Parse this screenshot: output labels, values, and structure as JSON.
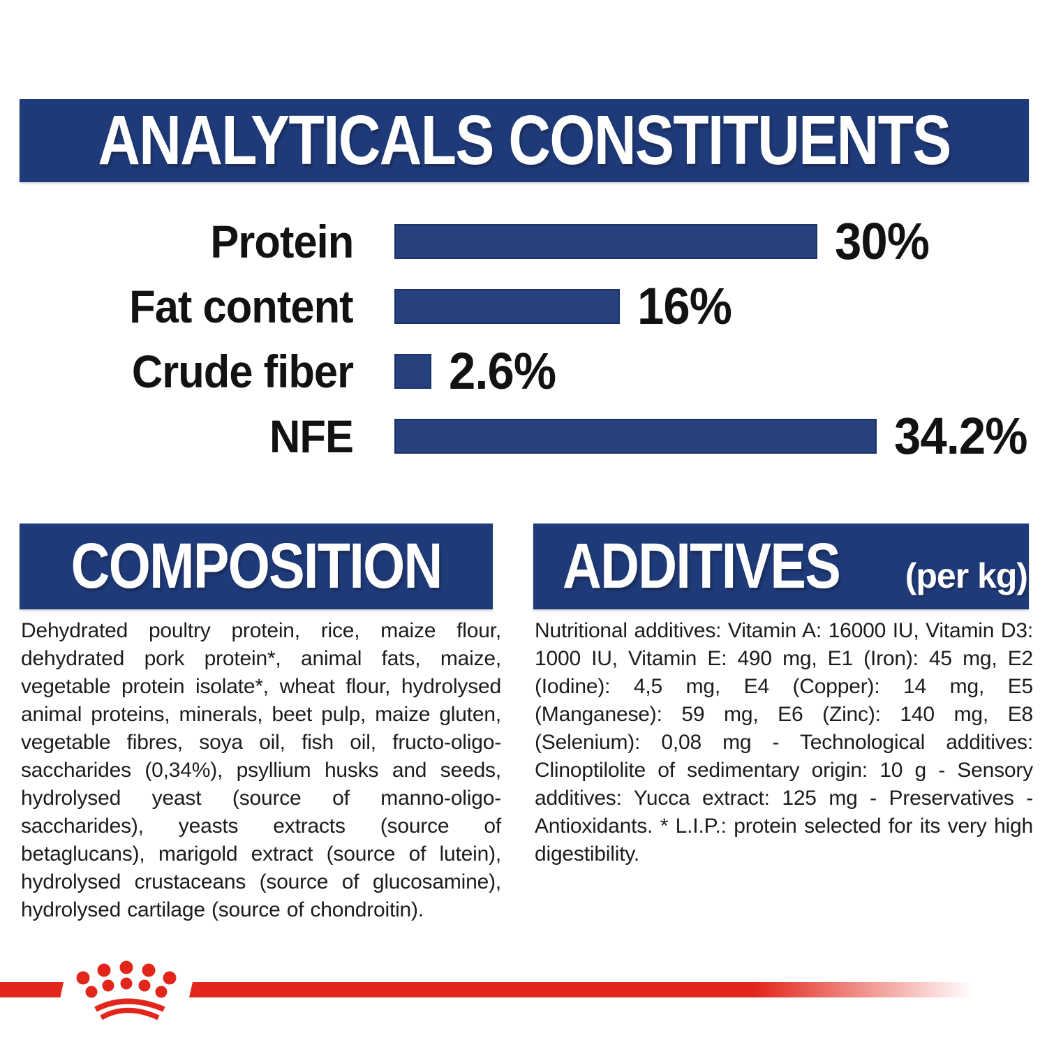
{
  "colors": {
    "banner_blue": "#1e3a79",
    "bar_blue": "#27417e",
    "brand_red": "#e2261b",
    "text_black": "#1c1c1a"
  },
  "analyticals": {
    "title": "ANALYTICALS CONSTITUENTS"
  },
  "chart_data": {
    "type": "bar",
    "orientation": "horizontal",
    "title": "ANALYTICALS CONSTITUENTS",
    "categories": [
      "Protein",
      "Fat content",
      "Crude fiber",
      "NFE"
    ],
    "values": [
      30,
      16,
      2.6,
      34.2
    ],
    "value_labels": [
      "30%",
      "16%",
      "2.6%",
      "34.2%"
    ],
    "unit": "%",
    "xlim": [
      0,
      36
    ],
    "grid": false,
    "legend": false,
    "bar_color": "#27417e",
    "label_position": "left",
    "value_position": "right-of-bar"
  },
  "composition": {
    "title": "COMPOSITION",
    "body": "Dehydrated poultry protein, rice, maize flour, dehydrated pork protein*, animal fats, maize, vegetable protein isolate*, wheat flour, hydrolysed animal proteins, minerals, beet pulp, maize gluten, vegetable fibres, soya oil, fish oil, fructo-oligo-saccharides (0,34%), psyllium husks and seeds, hydrolysed yeast (source of manno-oligo-saccharides), yeasts extracts (source of betaglucans), marigold extract (source of lutein), hydrolysed crustaceans (source of glucosamine), hydrolysed cartilage (source of chondroitin)."
  },
  "additives": {
    "title": "ADDITIVES",
    "title_suffix": "(per kg)",
    "body": "Nutritional additives: Vitamin A: 16000 IU, Vitamin D3: 1000 IU, Vitamin E: 490 mg, E1 (Iron): 45 mg, E2 (Iodine): 4,5 mg, E4 (Copper): 14 mg, E5 (Manganese): 59 mg, E6 (Zinc): 140 mg, E8 (Selenium): 0,08 mg - Technological additives: Clinoptilolite of sedimentary origin: 10 g - Sensory additives: Yucca extract: 125 mg - Preservatives - Antioxidants. * L.I.P.: protein selected for its very high digestibility."
  },
  "footer": {
    "logo": "royal-canin-crown"
  }
}
